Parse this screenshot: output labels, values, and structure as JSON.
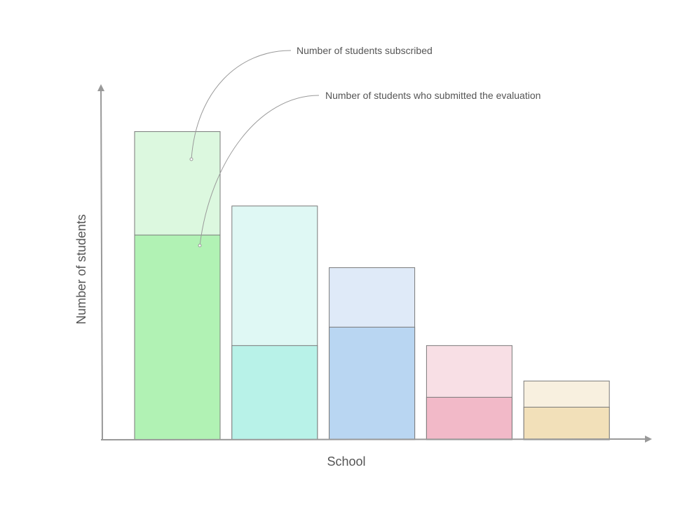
{
  "chart_data": {
    "type": "bar",
    "title": "",
    "xlabel": "School",
    "ylabel": "Number of students",
    "categories": [
      "",
      "",
      "",
      "",
      ""
    ],
    "series": [
      {
        "name": "Number of students subscribed",
        "values": [
          435,
          330,
          243,
          133,
          83
        ]
      },
      {
        "name": "Number of students who submitted the evaluation",
        "values": [
          289,
          133,
          159,
          60,
          46
        ]
      }
    ],
    "ylim": [
      0,
      500
    ],
    "grid": false,
    "stacking": "overlay",
    "colors": {
      "subscribed": [
        "#dcf8df",
        "#dff8f4",
        "#dfeaf8",
        "#f8dfe5",
        "#f8f0df"
      ],
      "submitted": [
        "#b1f2b4",
        "#b8f2e8",
        "#b9d6f2",
        "#f2b9c8",
        "#f2e0b9"
      ],
      "stroke": "#7a7a7a",
      "axis": "#999999",
      "text": "#555555"
    }
  }
}
